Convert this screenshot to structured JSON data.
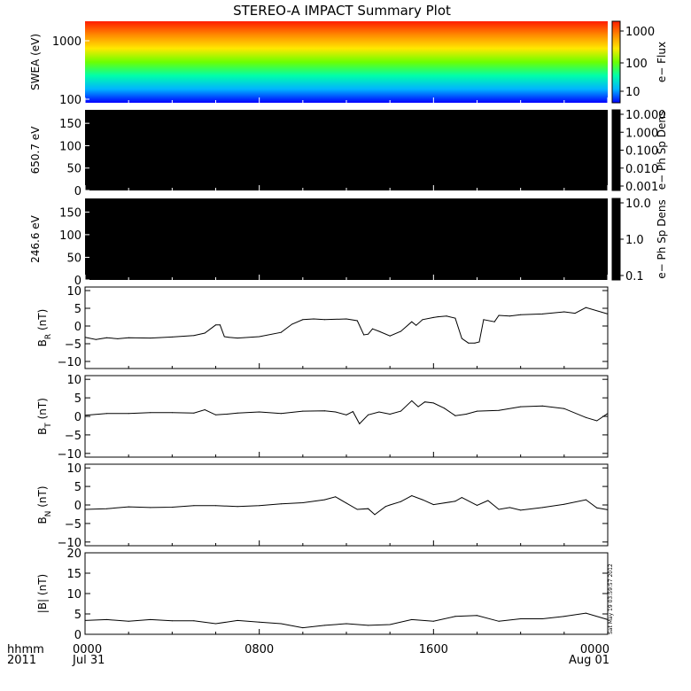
{
  "title": "STEREO-A IMPACT Summary Plot",
  "stamp": "Sat May 19 03:59:57 2012",
  "time_axis": {
    "row_label": "hhmm",
    "year": "2011",
    "ticks": [
      {
        "hours": 0,
        "label": "0000",
        "date": "Jul 31"
      },
      {
        "hours": 8,
        "label": "0800",
        "date": ""
      },
      {
        "hours": 16,
        "label": "1600",
        "date": ""
      },
      {
        "hours": 24,
        "label": "0000",
        "date": "Aug 01"
      }
    ],
    "range_hours": [
      0,
      24
    ]
  },
  "colors": {
    "spectrogram_scale": [
      "#0000ff",
      "#00b4ff",
      "#00ffaa",
      "#6cff00",
      "#ffe800",
      "#ff8a00",
      "#ff1c00"
    ],
    "dark_panel": "#000000",
    "line": "#000000"
  },
  "chart_data": [
    {
      "type": "heatmap",
      "ylabel": "SWEA (eV)",
      "yscale": "log",
      "ylim": [
        100,
        2000
      ],
      "yticks": [
        "1000",
        "100"
      ],
      "colorbar": {
        "label": "e− Flux",
        "scale": "log",
        "ticks": [
          "1000",
          "100",
          "10"
        ]
      }
    },
    {
      "type": "heatmap",
      "ylabel": "650.7 eV",
      "ylim": [
        0,
        180
      ],
      "yticks": [
        "150",
        "100",
        "50",
        "0"
      ],
      "note": "panel entirely black",
      "colorbar": {
        "label": "e− Ph Sp Dens",
        "scale": "log",
        "ticks": [
          "10.000",
          "1.000",
          "0.100",
          "0.010",
          "0.001"
        ]
      }
    },
    {
      "type": "heatmap",
      "ylabel": "246.6 eV",
      "ylim": [
        0,
        180
      ],
      "yticks": [
        "150",
        "100",
        "50",
        "0"
      ],
      "note": "panel entirely black",
      "colorbar": {
        "label": "e− Ph Sp Dens",
        "scale": "log",
        "ticks": [
          "10.0",
          "1.0",
          "0.1"
        ]
      }
    },
    {
      "type": "line",
      "ylabel_main": "B",
      "ylabel_sub": "R",
      "ylabel_unit": " (nT)",
      "ylim": [
        -12,
        11
      ],
      "yticks": [
        "10",
        "5",
        "0",
        "−5",
        "−10"
      ],
      "x": [
        0,
        0.5,
        1,
        1.5,
        2,
        3,
        4,
        5,
        5.5,
        6.0,
        6.2,
        6.4,
        6.6,
        7,
        8,
        9,
        9.5,
        10,
        10.5,
        11,
        12,
        12.5,
        12.8,
        13,
        13.2,
        13.5,
        14,
        14.5,
        15,
        15.2,
        15.5,
        16,
        16.2,
        16.6,
        17,
        17.3,
        17.6,
        17.9,
        18.1,
        18.3,
        18.8,
        19,
        19.5,
        20,
        21,
        22,
        22.5,
        23,
        24
      ],
      "y": [
        -3.2,
        -3.8,
        -3.3,
        -3.6,
        -3.3,
        -3.4,
        -3.1,
        -2.7,
        -2.0,
        0.3,
        0.3,
        -3.0,
        -3.2,
        -3.4,
        -3.0,
        -1.8,
        0.5,
        1.8,
        2.0,
        1.8,
        2.0,
        1.5,
        -2.5,
        -2.3,
        -0.8,
        -1.5,
        -2.8,
        -1.5,
        1.2,
        0.2,
        1.8,
        2.4,
        2.6,
        2.8,
        2.2,
        -3.5,
        -4.8,
        -4.8,
        -4.5,
        1.8,
        1.2,
        3.0,
        2.8,
        3.2,
        3.4,
        4.0,
        3.6,
        5.2,
        3.4
      ]
    },
    {
      "type": "line",
      "ylabel_main": "B",
      "ylabel_sub": "T",
      "ylabel_unit": " (nT)",
      "ylim": [
        -11,
        11
      ],
      "yticks": [
        "10",
        "5",
        "0",
        "−5",
        "−10"
      ],
      "x": [
        0,
        1,
        2,
        3,
        4,
        5,
        5.5,
        6,
        6.5,
        7,
        8,
        9,
        10,
        11,
        11.5,
        12,
        12.3,
        12.6,
        13,
        13.5,
        14,
        14.5,
        15,
        15.3,
        15.6,
        16,
        16.5,
        17,
        17.5,
        18,
        19,
        20,
        21,
        22,
        23,
        23.5,
        24
      ],
      "y": [
        0.3,
        0.8,
        0.8,
        1.0,
        1.0,
        0.9,
        1.8,
        0.4,
        0.6,
        0.9,
        1.2,
        0.8,
        1.4,
        1.5,
        1.2,
        0.4,
        1.3,
        -2.0,
        0.4,
        1.2,
        0.6,
        1.4,
        4.2,
        2.6,
        3.9,
        3.6,
        2.2,
        0.2,
        0.6,
        1.4,
        1.6,
        2.6,
        2.8,
        2.1,
        -0.3,
        -1.2,
        0.8
      ]
    },
    {
      "type": "line",
      "ylabel_main": "B",
      "ylabel_sub": "N",
      "ylabel_unit": " (nT)",
      "ylim": [
        -11,
        11
      ],
      "yticks": [
        "10",
        "5",
        "0",
        "−5",
        "−10"
      ],
      "x": [
        0,
        1,
        2,
        3,
        4,
        5,
        6,
        7,
        8,
        9,
        10,
        11,
        11.5,
        12,
        12.5,
        13,
        13.3,
        13.8,
        14,
        14.5,
        15,
        15.5,
        16,
        17,
        17.3,
        18,
        18.5,
        19,
        19.5,
        20,
        21,
        22,
        23,
        23.5,
        24
      ],
      "y": [
        -1.2,
        -1.0,
        -0.5,
        -0.7,
        -0.6,
        -0.2,
        -0.2,
        -0.4,
        -0.2,
        0.3,
        0.6,
        1.4,
        2.2,
        0.5,
        -1.2,
        -1.0,
        -2.6,
        -0.4,
        0.0,
        0.9,
        2.5,
        1.4,
        0.1,
        1.0,
        2.0,
        -0.1,
        1.2,
        -1.2,
        -0.7,
        -1.4,
        -0.7,
        0.2,
        1.4,
        -0.8,
        -1.3
      ]
    },
    {
      "type": "line",
      "ylabel_main": "|B|",
      "ylabel_sub": "",
      "ylabel_unit": " (nT)",
      "ylim": [
        0,
        20
      ],
      "yticks": [
        "20",
        "15",
        "10",
        "5",
        "0"
      ],
      "x": [
        0,
        1,
        2,
        3,
        4,
        5,
        6,
        7,
        8,
        9,
        10,
        11,
        12,
        13,
        14,
        15,
        16,
        17,
        18,
        19,
        20,
        21,
        22,
        23,
        24
      ],
      "y": [
        3.4,
        3.6,
        3.2,
        3.6,
        3.3,
        3.3,
        2.6,
        3.4,
        3.0,
        2.6,
        1.6,
        2.2,
        2.6,
        2.2,
        2.4,
        3.6,
        3.2,
        4.4,
        4.6,
        3.2,
        3.8,
        3.8,
        4.4,
        5.2,
        3.6
      ]
    }
  ]
}
